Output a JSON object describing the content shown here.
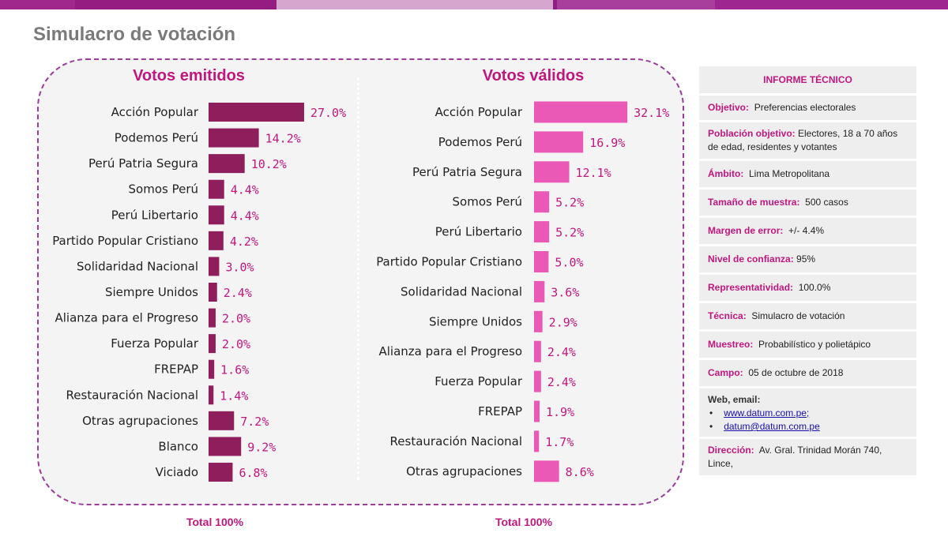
{
  "page_title": "Simulacro de votación",
  "colors": {
    "topbar": [
      "#a0288c",
      "#951c80",
      "#d7a6cf",
      "#8f1f86",
      "#a83f9c",
      "#9d2690"
    ],
    "emitidos_bar": "#8e1f5c",
    "validos_bar": "#ea59b5",
    "accent": "#c0177f"
  },
  "chart_data": [
    {
      "type": "bar",
      "orientation": "horizontal",
      "title": "Votos emitidos",
      "categories": [
        "Acción Popular",
        "Podemos Perú",
        "Perú Patria Segura",
        "Somos Perú",
        "Perú Libertario",
        "Partido Popular Cristiano",
        "Solidaridad Nacional",
        "Siempre Unidos",
        "Alianza para el Progreso",
        "Fuerza Popular",
        "FREPAP",
        "Restauración Nacional",
        "Otras agrupaciones",
        "Blanco",
        "Viciado"
      ],
      "values": [
        27.0,
        14.2,
        10.2,
        4.4,
        4.4,
        4.2,
        3.0,
        2.4,
        2.0,
        2.0,
        1.6,
        1.4,
        7.2,
        9.2,
        6.8
      ],
      "value_labels": [
        "27.0%",
        "14.2%",
        "10.2%",
        "4.4%",
        "4.4%",
        "4.2%",
        "3.0%",
        "2.4%",
        "2.0%",
        "2.0%",
        "1.6%",
        "1.4%",
        "7.2%",
        "9.2%",
        "6.8%"
      ],
      "footer": "Total 100%"
    },
    {
      "type": "bar",
      "orientation": "horizontal",
      "title": "Votos válidos",
      "categories": [
        "Acción Popular",
        "Podemos Perú",
        "Perú Patria Segura",
        "Somos Perú",
        "Perú Libertario",
        "Partido Popular Cristiano",
        "Solidaridad Nacional",
        "Siempre Unidos",
        "Alianza para el Progreso",
        "Fuerza Popular",
        "FREPAP",
        "Restauración Nacional",
        "Otras agrupaciones"
      ],
      "values": [
        32.1,
        16.9,
        12.1,
        5.2,
        5.2,
        5.0,
        3.6,
        2.9,
        2.4,
        2.4,
        1.9,
        1.7,
        8.6
      ],
      "value_labels": [
        "32.1%",
        "16.9%",
        "12.1%",
        "5.2%",
        "5.2%",
        "5.0%",
        "3.6%",
        "2.9%",
        "2.4%",
        "2.4%",
        "1.9%",
        "1.7%",
        "8.6%"
      ],
      "footer": "Total 100%"
    }
  ],
  "informe": {
    "title": "INFORME TÉCNICO",
    "rows": [
      {
        "key": "Objetivo:",
        "value": "Preferencias electorales"
      },
      {
        "key": "Población objetivo:",
        "value": "Electores, 18 a 70 años de edad, residentes y votantes"
      },
      {
        "key": "Ámbito:",
        "value": "Lima Metropolitana"
      },
      {
        "key": "Tamaño de muestra:",
        "value": "500 casos"
      },
      {
        "key": "Margen de error:",
        "value": "+/- 4.4%"
      },
      {
        "key": "Nivel de confianza:",
        "value": "95%"
      },
      {
        "key": "Representatividad:",
        "value": "100.0%"
      },
      {
        "key": "Técnica:",
        "value": "Simulacro de votación"
      },
      {
        "key": "Muestreo:",
        "value": "Probabilístico y  polietápico"
      },
      {
        "key": "Campo:",
        "value": "05 de octubre de 2018"
      }
    ],
    "web": {
      "label": "Web, email:",
      "bullet": "•",
      "links": [
        "www.datum.com.pe;",
        "datum@datum.com.pe"
      ]
    },
    "direccion": {
      "key": "Dirección:",
      "value": "Av. Gral. Trinidad Morán 740, Lince,"
    }
  }
}
